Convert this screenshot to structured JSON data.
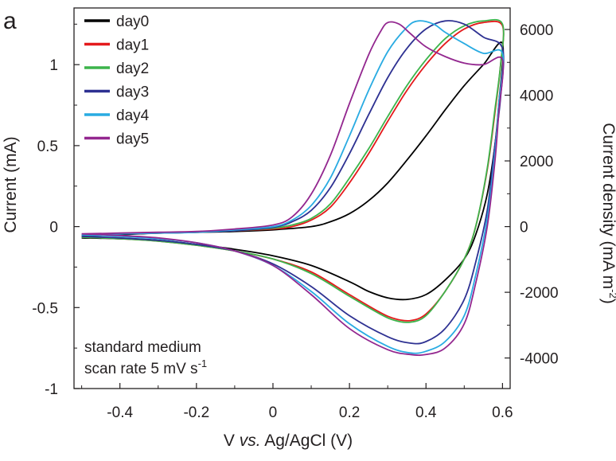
{
  "panel_label": "a",
  "chart_data": {
    "type": "line",
    "title": "",
    "xlabel_parts": [
      "V ",
      "vs.",
      " Ag/AgCl (V)"
    ],
    "ylabel": "Current (mA)",
    "y2label_parts": [
      "Current density (mA m",
      "-2",
      ")"
    ],
    "xlim": [
      -0.52,
      0.62
    ],
    "ylim": [
      -1.0,
      1.35
    ],
    "y2_per_y": 4930,
    "xticks": [
      -0.4,
      -0.2,
      0,
      0.2,
      0.4,
      0.6
    ],
    "xtick_labels": [
      "-0.4",
      "-0.2",
      "0",
      "0.2",
      "0.4",
      "0.6"
    ],
    "yticks": [
      -1,
      -0.5,
      0,
      0.5,
      1
    ],
    "ytick_labels": [
      "-1",
      "-0.5",
      "0",
      "0.5",
      "1"
    ],
    "y2ticks": [
      -4000,
      -2000,
      0,
      2000,
      4000,
      6000
    ],
    "y2tick_labels": [
      "-4000",
      "-2000",
      "0",
      "2000",
      "4000",
      "6000"
    ],
    "grid": false,
    "legend_position": "top-left",
    "annotations": [
      "standard medium",
      "scan rate 5 mV s",
      "-1"
    ],
    "series": [
      {
        "name": "day0",
        "color": "#000000",
        "forward": [
          [
            -0.5,
            -0.06
          ],
          [
            -0.4,
            -0.05
          ],
          [
            -0.3,
            -0.04
          ],
          [
            -0.2,
            -0.035
          ],
          [
            -0.1,
            -0.03
          ],
          [
            0,
            -0.02
          ],
          [
            0.1,
            0.0
          ],
          [
            0.15,
            0.03
          ],
          [
            0.2,
            0.08
          ],
          [
            0.25,
            0.16
          ],
          [
            0.3,
            0.27
          ],
          [
            0.35,
            0.41
          ],
          [
            0.4,
            0.56
          ],
          [
            0.45,
            0.72
          ],
          [
            0.5,
            0.87
          ],
          [
            0.55,
            1.0
          ],
          [
            0.6,
            1.13
          ]
        ],
        "reverse": [
          [
            0.6,
            1.13
          ],
          [
            0.59,
            0.75
          ],
          [
            0.58,
            0.5
          ],
          [
            0.56,
            0.2
          ],
          [
            0.53,
            -0.05
          ],
          [
            0.5,
            -0.2
          ],
          [
            0.45,
            -0.33
          ],
          [
            0.4,
            -0.42
          ],
          [
            0.35,
            -0.45
          ],
          [
            0.3,
            -0.44
          ],
          [
            0.25,
            -0.4
          ],
          [
            0.2,
            -0.34
          ],
          [
            0.1,
            -0.24
          ],
          [
            0,
            -0.18
          ],
          [
            -0.1,
            -0.14
          ],
          [
            -0.2,
            -0.11
          ],
          [
            -0.3,
            -0.085
          ],
          [
            -0.4,
            -0.075
          ],
          [
            -0.5,
            -0.07
          ]
        ]
      },
      {
        "name": "day1",
        "color": "#e41a1c",
        "forward": [
          [
            -0.5,
            -0.055
          ],
          [
            -0.4,
            -0.045
          ],
          [
            -0.3,
            -0.04
          ],
          [
            -0.2,
            -0.035
          ],
          [
            -0.1,
            -0.025
          ],
          [
            0,
            -0.015
          ],
          [
            0.05,
            0.0
          ],
          [
            0.1,
            0.04
          ],
          [
            0.15,
            0.12
          ],
          [
            0.2,
            0.27
          ],
          [
            0.25,
            0.45
          ],
          [
            0.3,
            0.65
          ],
          [
            0.35,
            0.84
          ],
          [
            0.4,
            1.0
          ],
          [
            0.45,
            1.13
          ],
          [
            0.5,
            1.22
          ],
          [
            0.55,
            1.26
          ],
          [
            0.6,
            1.24
          ]
        ],
        "reverse": [
          [
            0.6,
            1.24
          ],
          [
            0.595,
            1.0
          ],
          [
            0.58,
            0.7
          ],
          [
            0.56,
            0.35
          ],
          [
            0.53,
            0.0
          ],
          [
            0.5,
            -0.2
          ],
          [
            0.45,
            -0.4
          ],
          [
            0.4,
            -0.54
          ],
          [
            0.36,
            -0.58
          ],
          [
            0.32,
            -0.57
          ],
          [
            0.28,
            -0.53
          ],
          [
            0.2,
            -0.42
          ],
          [
            0.1,
            -0.28
          ],
          [
            0,
            -0.2
          ],
          [
            -0.1,
            -0.15
          ],
          [
            -0.2,
            -0.115
          ],
          [
            -0.3,
            -0.09
          ],
          [
            -0.4,
            -0.075
          ],
          [
            -0.5,
            -0.065
          ]
        ]
      },
      {
        "name": "day2",
        "color": "#3cb44b",
        "forward": [
          [
            -0.5,
            -0.055
          ],
          [
            -0.4,
            -0.045
          ],
          [
            -0.3,
            -0.04
          ],
          [
            -0.2,
            -0.035
          ],
          [
            -0.1,
            -0.025
          ],
          [
            0,
            -0.01
          ],
          [
            0.05,
            0.01
          ],
          [
            0.1,
            0.05
          ],
          [
            0.15,
            0.14
          ],
          [
            0.2,
            0.3
          ],
          [
            0.25,
            0.48
          ],
          [
            0.3,
            0.68
          ],
          [
            0.35,
            0.87
          ],
          [
            0.4,
            1.03
          ],
          [
            0.45,
            1.16
          ],
          [
            0.5,
            1.24
          ],
          [
            0.55,
            1.27
          ],
          [
            0.6,
            1.25
          ]
        ],
        "reverse": [
          [
            0.6,
            1.25
          ],
          [
            0.595,
            1.0
          ],
          [
            0.58,
            0.72
          ],
          [
            0.56,
            0.36
          ],
          [
            0.53,
            0.0
          ],
          [
            0.5,
            -0.2
          ],
          [
            0.45,
            -0.4
          ],
          [
            0.4,
            -0.55
          ],
          [
            0.36,
            -0.59
          ],
          [
            0.32,
            -0.58
          ],
          [
            0.28,
            -0.54
          ],
          [
            0.2,
            -0.43
          ],
          [
            0.1,
            -0.29
          ],
          [
            0,
            -0.2
          ],
          [
            -0.1,
            -0.15
          ],
          [
            -0.2,
            -0.115
          ],
          [
            -0.3,
            -0.09
          ],
          [
            -0.4,
            -0.075
          ],
          [
            -0.5,
            -0.065
          ]
        ]
      },
      {
        "name": "day3",
        "color": "#2e3192",
        "forward": [
          [
            -0.5,
            -0.05
          ],
          [
            -0.4,
            -0.045
          ],
          [
            -0.3,
            -0.04
          ],
          [
            -0.2,
            -0.035
          ],
          [
            -0.1,
            -0.025
          ],
          [
            0,
            -0.005
          ],
          [
            0.05,
            0.03
          ],
          [
            0.1,
            0.1
          ],
          [
            0.15,
            0.24
          ],
          [
            0.2,
            0.45
          ],
          [
            0.25,
            0.69
          ],
          [
            0.3,
            0.92
          ],
          [
            0.35,
            1.1
          ],
          [
            0.4,
            1.22
          ],
          [
            0.45,
            1.27
          ],
          [
            0.5,
            1.25
          ],
          [
            0.55,
            1.17
          ],
          [
            0.6,
            1.1
          ]
        ],
        "reverse": [
          [
            0.6,
            1.1
          ],
          [
            0.595,
            0.8
          ],
          [
            0.58,
            0.5
          ],
          [
            0.56,
            0.1
          ],
          [
            0.53,
            -0.22
          ],
          [
            0.5,
            -0.45
          ],
          [
            0.45,
            -0.63
          ],
          [
            0.4,
            -0.71
          ],
          [
            0.36,
            -0.72
          ],
          [
            0.3,
            -0.68
          ],
          [
            0.2,
            -0.55
          ],
          [
            0.1,
            -0.37
          ],
          [
            0,
            -0.23
          ],
          [
            -0.1,
            -0.15
          ],
          [
            -0.2,
            -0.11
          ],
          [
            -0.3,
            -0.085
          ],
          [
            -0.4,
            -0.07
          ],
          [
            -0.5,
            -0.06
          ]
        ]
      },
      {
        "name": "day4",
        "color": "#29abe2",
        "forward": [
          [
            -0.5,
            -0.05
          ],
          [
            -0.4,
            -0.045
          ],
          [
            -0.3,
            -0.04
          ],
          [
            -0.2,
            -0.035
          ],
          [
            -0.1,
            -0.02
          ],
          [
            0,
            0.0
          ],
          [
            0.05,
            0.04
          ],
          [
            0.1,
            0.13
          ],
          [
            0.15,
            0.3
          ],
          [
            0.2,
            0.56
          ],
          [
            0.25,
            0.84
          ],
          [
            0.3,
            1.08
          ],
          [
            0.35,
            1.23
          ],
          [
            0.38,
            1.27
          ],
          [
            0.42,
            1.25
          ],
          [
            0.45,
            1.2
          ],
          [
            0.5,
            1.13
          ],
          [
            0.55,
            1.07
          ],
          [
            0.6,
            1.07
          ]
        ],
        "reverse": [
          [
            0.6,
            1.07
          ],
          [
            0.59,
            0.75
          ],
          [
            0.58,
            0.45
          ],
          [
            0.56,
            0.05
          ],
          [
            0.53,
            -0.3
          ],
          [
            0.5,
            -0.55
          ],
          [
            0.45,
            -0.71
          ],
          [
            0.4,
            -0.77
          ],
          [
            0.36,
            -0.78
          ],
          [
            0.3,
            -0.74
          ],
          [
            0.2,
            -0.6
          ],
          [
            0.1,
            -0.4
          ],
          [
            0,
            -0.24
          ],
          [
            -0.1,
            -0.15
          ],
          [
            -0.2,
            -0.1
          ],
          [
            -0.3,
            -0.075
          ],
          [
            -0.4,
            -0.06
          ],
          [
            -0.5,
            -0.05
          ]
        ]
      },
      {
        "name": "day5",
        "color": "#93278f",
        "forward": [
          [
            -0.5,
            -0.045
          ],
          [
            -0.4,
            -0.04
          ],
          [
            -0.3,
            -0.035
          ],
          [
            -0.2,
            -0.03
          ],
          [
            -0.1,
            -0.015
          ],
          [
            0,
            0.01
          ],
          [
            0.05,
            0.06
          ],
          [
            0.1,
            0.2
          ],
          [
            0.15,
            0.44
          ],
          [
            0.2,
            0.76
          ],
          [
            0.25,
            1.06
          ],
          [
            0.28,
            1.2
          ],
          [
            0.3,
            1.26
          ],
          [
            0.33,
            1.25
          ],
          [
            0.36,
            1.19
          ],
          [
            0.4,
            1.11
          ],
          [
            0.45,
            1.05
          ],
          [
            0.5,
            1.01
          ],
          [
            0.55,
            1.0
          ],
          [
            0.6,
            1.03
          ]
        ],
        "reverse": [
          [
            0.6,
            1.03
          ],
          [
            0.59,
            0.7
          ],
          [
            0.58,
            0.4
          ],
          [
            0.56,
            0.0
          ],
          [
            0.53,
            -0.35
          ],
          [
            0.5,
            -0.6
          ],
          [
            0.45,
            -0.75
          ],
          [
            0.4,
            -0.79
          ],
          [
            0.36,
            -0.79
          ],
          [
            0.3,
            -0.76
          ],
          [
            0.2,
            -0.63
          ],
          [
            0.1,
            -0.42
          ],
          [
            0,
            -0.24
          ],
          [
            -0.1,
            -0.15
          ],
          [
            -0.2,
            -0.1
          ],
          [
            -0.3,
            -0.07
          ],
          [
            -0.4,
            -0.055
          ],
          [
            -0.5,
            -0.045
          ]
        ]
      }
    ]
  }
}
